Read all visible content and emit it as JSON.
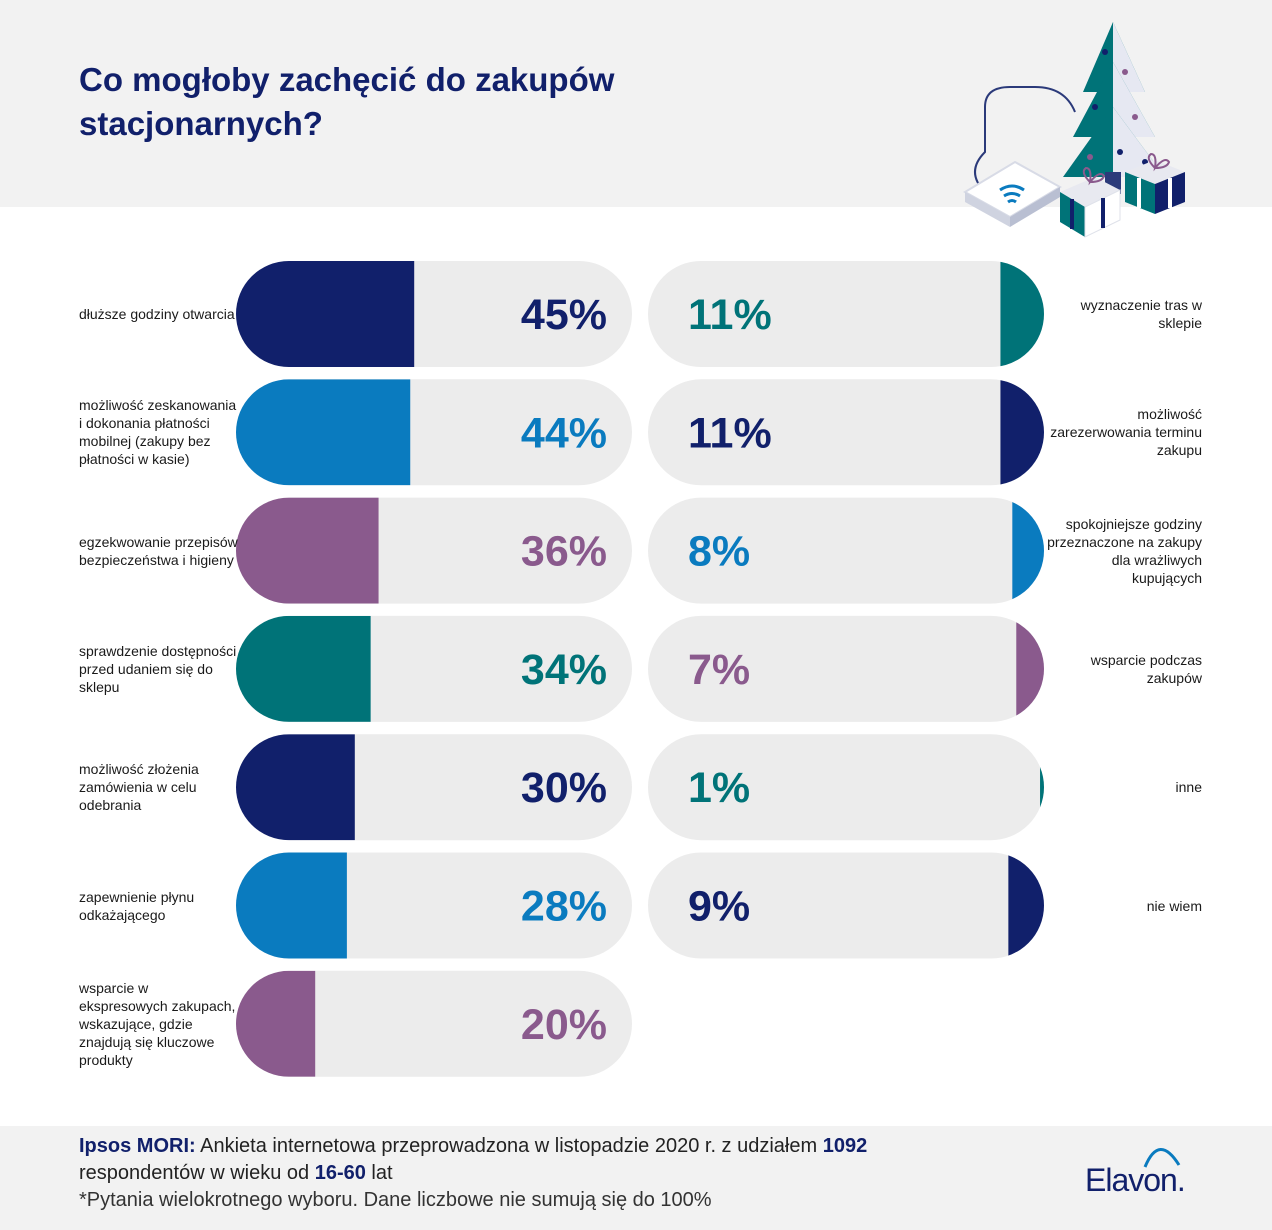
{
  "title": "Co mogłoby zachęcić do zakupów stacjonarnych?",
  "chart_data": {
    "type": "bar",
    "xlim": [
      0,
      100
    ],
    "unit": "%",
    "colors": {
      "navy": "#11206b",
      "blue": "#0a7bbf",
      "purple": "#8a5a8d",
      "teal": "#007378",
      "track": "#ececec"
    },
    "left_column": [
      {
        "label": "dłuższe godziny otwarcia",
        "value": 45,
        "color": "navy"
      },
      {
        "label": "możliwość zeskanowania i dokonania płatności mobilnej (zakupy bez płatności w kasie)",
        "value": 44,
        "color": "blue"
      },
      {
        "label": "egzekwowanie przepisów bezpieczeństwa i higieny",
        "value": 36,
        "color": "purple"
      },
      {
        "label": "sprawdzenie dostępności przed udaniem się do sklepu",
        "value": 34,
        "color": "teal"
      },
      {
        "label": "możliwość złożenia zamówienia w celu odebrania",
        "value": 30,
        "color": "navy"
      },
      {
        "label": "zapewnienie płynu odkażającego",
        "value": 28,
        "color": "blue"
      },
      {
        "label": "wsparcie w ekspresowych zakupach, wskazujące, gdzie znajdują się kluczowe produkty",
        "value": 20,
        "color": "purple"
      }
    ],
    "right_column": [
      {
        "label": "wyznaczenie tras w sklepie",
        "value": 11,
        "color": "teal"
      },
      {
        "label": "możliwość zarezerwowania terminu zakupu",
        "value": 11,
        "color": "navy"
      },
      {
        "label": "spokojniejsze godziny przeznaczone na zakupy dla wrażliwych kupujących",
        "value": 8,
        "color": "blue"
      },
      {
        "label": "wsparcie podczas zakupów",
        "value": 7,
        "color": "purple"
      },
      {
        "label": "inne",
        "value": 1,
        "color": "teal"
      },
      {
        "label": "nie wiem",
        "value": 9,
        "color": "navy"
      }
    ]
  },
  "footer": {
    "source_name": "Ipsos MORI:",
    "source_text_a": " Ankieta internetowa przeprowadzona w listopadzie 2020 r. z udziałem ",
    "respondents": "1092",
    "source_text_b": "respondentów w wieku od ",
    "age_range": "16-60",
    "source_text_c": " lat",
    "note": "*Pytania wielokrotnego wyboru. Dane liczbowe nie sumują się do 100%"
  },
  "brand": "Elavon."
}
